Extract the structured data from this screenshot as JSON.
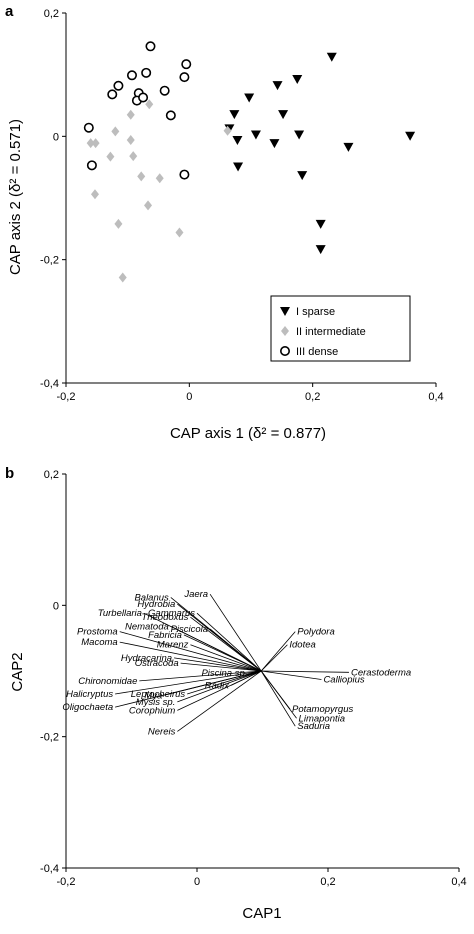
{
  "chart_data": [
    {
      "panel": "a",
      "type": "scatter",
      "xlabel": "CAP axis 1 (δ² = 0.877)",
      "ylabel": "CAP axis 2 (δ² = 0.571)",
      "xlim": [
        -0.2,
        0.4
      ],
      "ylim": [
        -0.4,
        0.2
      ],
      "xticks": [
        "-0,2",
        "0",
        "0,2",
        "0,4"
      ],
      "yticks": [
        "0,2",
        "0",
        "-0,2",
        "-0,4"
      ],
      "legend_placement": "bottom-right",
      "series": [
        {
          "name": "I sparse",
          "marker": "triangle-down-filled",
          "color": "#000000",
          "points": [
            [
              0.097,
              0.063
            ],
            [
              0.143,
              0.083
            ],
            [
              0.175,
              0.093
            ],
            [
              0.231,
              0.129
            ],
            [
              0.073,
              0.036
            ],
            [
              0.065,
              0.013
            ],
            [
              0.078,
              -0.006
            ],
            [
              0.108,
              0.003
            ],
            [
              0.152,
              0.036
            ],
            [
              0.178,
              0.003
            ],
            [
              0.138,
              -0.011
            ],
            [
              0.258,
              -0.017
            ],
            [
              0.358,
              0.001
            ],
            [
              0.079,
              -0.049
            ],
            [
              0.183,
              -0.063
            ],
            [
              0.213,
              -0.142
            ],
            [
              0.213,
              -0.183
            ]
          ]
        },
        {
          "name": "II intermediate",
          "marker": "diamond-filled",
          "color": "#bdbdbd",
          "points": [
            [
              -0.065,
              0.052
            ],
            [
              -0.095,
              0.035
            ],
            [
              -0.12,
              0.008
            ],
            [
              -0.095,
              -0.006
            ],
            [
              -0.16,
              -0.011
            ],
            [
              -0.152,
              -0.011
            ],
            [
              -0.091,
              -0.032
            ],
            [
              -0.078,
              -0.065
            ],
            [
              -0.048,
              -0.068
            ],
            [
              -0.153,
              -0.094
            ],
            [
              -0.067,
              -0.112
            ],
            [
              -0.115,
              -0.142
            ],
            [
              -0.016,
              -0.156
            ],
            [
              -0.108,
              -0.229
            ],
            [
              0.062,
              0.009
            ],
            [
              -0.128,
              -0.033
            ]
          ]
        },
        {
          "name": "III dense",
          "marker": "circle-open",
          "color": "#000000",
          "points": [
            [
              -0.063,
              0.146
            ],
            [
              -0.005,
              0.117
            ],
            [
              -0.093,
              0.099
            ],
            [
              -0.07,
              0.103
            ],
            [
              -0.008,
              0.096
            ],
            [
              -0.115,
              0.082
            ],
            [
              -0.125,
              0.068
            ],
            [
              -0.082,
              0.07
            ],
            [
              -0.04,
              0.074
            ],
            [
              -0.085,
              0.058
            ],
            [
              -0.075,
              0.063
            ],
            [
              -0.03,
              0.034
            ],
            [
              -0.163,
              0.014
            ],
            [
              -0.158,
              -0.047
            ],
            [
              -0.008,
              -0.062
            ]
          ]
        }
      ]
    },
    {
      "panel": "b",
      "type": "scatter",
      "xlabel": "CAP1",
      "ylabel": "CAP2",
      "xlim": [
        -0.2,
        0.4
      ],
      "ylim": [
        -0.4,
        0.2
      ],
      "xticks": [
        "-0,2",
        "0",
        "0,2",
        "0,4"
      ],
      "yticks": [
        "0,2",
        "0",
        "-0,2",
        "-0,4"
      ],
      "origin": [
        0.098,
        -0.1
      ],
      "vectors": [
        {
          "name": "Balanus",
          "x": -0.04,
          "y": 0.012
        },
        {
          "name": "Jaera",
          "x": 0.02,
          "y": 0.017
        },
        {
          "name": "Hydrobia",
          "x": -0.03,
          "y": 0.002
        },
        {
          "name": "Gammarus",
          "x": 0.0,
          "y": -0.012
        },
        {
          "name": "Turbellaria",
          "x": -0.081,
          "y": -0.012
        },
        {
          "name": "Theodoxus",
          "x": -0.01,
          "y": -0.018
        },
        {
          "name": "Nematoda",
          "x": -0.04,
          "y": -0.032
        },
        {
          "name": "Piscicola",
          "x": 0.02,
          "y": -0.036
        },
        {
          "name": "Prostoma",
          "x": -0.118,
          "y": -0.04
        },
        {
          "name": "Fabricia",
          "x": -0.02,
          "y": -0.045
        },
        {
          "name": "Macoma",
          "x": -0.118,
          "y": -0.056
        },
        {
          "name": "Marenz",
          "x": -0.01,
          "y": -0.06
        },
        {
          "name": "Hydracarina",
          "x": -0.035,
          "y": -0.08
        },
        {
          "name": "Ostracoda",
          "x": -0.025,
          "y": -0.088
        },
        {
          "name": "Polydora",
          "x": 0.15,
          "y": -0.04
        },
        {
          "name": "Idotea",
          "x": 0.138,
          "y": -0.06
        },
        {
          "name": "Piscina sp.",
          "x": 0.08,
          "y": -0.103
        },
        {
          "name": "Cerastoderma",
          "x": 0.232,
          "y": -0.102
        },
        {
          "name": "Calliopius",
          "x": 0.19,
          "y": -0.113
        },
        {
          "name": "Chironomidae",
          "x": -0.088,
          "y": -0.115
        },
        {
          "name": "Radix",
          "x": 0.052,
          "y": -0.122
        },
        {
          "name": "Halicryptus",
          "x": -0.125,
          "y": -0.135
        },
        {
          "name": "Mya",
          "x": -0.05,
          "y": -0.137
        },
        {
          "name": "Leptocheirus",
          "x": -0.015,
          "y": -0.135
        },
        {
          "name": "Mysis sp.",
          "x": -0.03,
          "y": -0.147
        },
        {
          "name": "Oligochaeta",
          "x": -0.125,
          "y": -0.155
        },
        {
          "name": "Corophium",
          "x": -0.03,
          "y": -0.16
        },
        {
          "name": "Potamopyrgus",
          "x": 0.142,
          "y": -0.158
        },
        {
          "name": "Limapontia",
          "x": 0.152,
          "y": -0.172
        },
        {
          "name": "Saduria",
          "x": 0.15,
          "y": -0.184
        },
        {
          "name": "Nereis",
          "x": -0.03,
          "y": -0.192
        }
      ]
    }
  ],
  "panels": {
    "a_label": "a",
    "b_label": "b"
  }
}
